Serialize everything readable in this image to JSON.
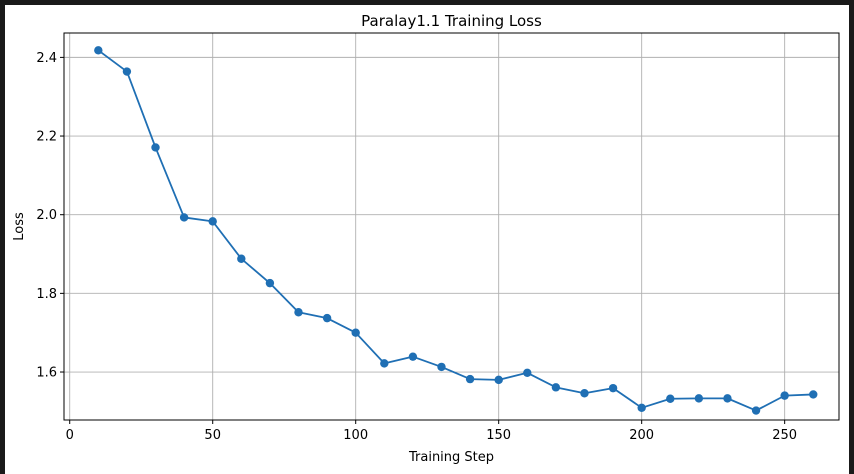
{
  "chart_data": {
    "type": "line",
    "title": "Paralay1.1 Training Loss",
    "xlabel": "Training Step",
    "ylabel": "Loss",
    "xlim": [
      -2,
      269
    ],
    "ylim": [
      1.478,
      2.462
    ],
    "xticks": [
      0,
      50,
      100,
      150,
      200,
      250
    ],
    "yticks": [
      1.6,
      1.8,
      2.0,
      2.2,
      2.4
    ],
    "grid": true,
    "color": "#1f6fb4",
    "series": [
      {
        "x": [
          10,
          20,
          30,
          40,
          50,
          60,
          70,
          80,
          90,
          100,
          110,
          120,
          130,
          140,
          150,
          160,
          170,
          180,
          190,
          200,
          210,
          220,
          230,
          240,
          250,
          260
        ],
        "y": [
          2.418,
          2.364,
          2.171,
          1.993,
          1.983,
          1.888,
          1.826,
          1.752,
          1.737,
          1.7,
          1.622,
          1.639,
          1.613,
          1.582,
          1.58,
          1.598,
          1.561,
          1.546,
          1.559,
          1.509,
          1.532,
          1.533,
          1.533,
          1.502,
          1.54,
          1.543
        ]
      }
    ]
  }
}
